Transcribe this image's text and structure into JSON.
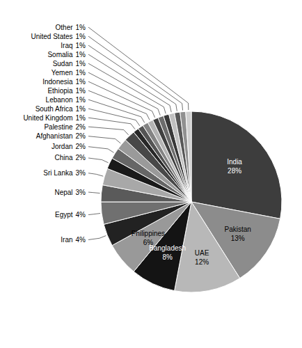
{
  "chart_data": {
    "type": "pie",
    "categories": [
      "India",
      "Pakistan",
      "UAE",
      "Bangladesh",
      "Philippines",
      "Iran",
      "Egypt",
      "Nepal",
      "Sri Lanka",
      "China",
      "Jordan",
      "Afghanistan",
      "Palestine",
      "United Kingdom",
      "South Africa",
      "Lebanon",
      "Ethiopia",
      "Indonesia",
      "Yemen",
      "Sudan",
      "Somalia",
      "Iraq",
      "United States",
      "Other"
    ],
    "values": [
      28,
      13,
      12,
      8,
      6,
      4,
      4,
      3,
      3,
      2,
      2,
      2,
      2,
      1,
      1,
      1,
      1,
      1,
      1,
      1,
      1,
      1,
      1,
      1
    ],
    "value_labels": [
      "28%",
      "13%",
      "12%",
      "8%",
      "6%",
      "4%",
      "4%",
      "3%",
      "3%",
      "2%",
      "2%",
      "2%",
      "2%",
      "1%",
      "1%",
      "1%",
      "1%",
      "1%",
      "1%",
      "1%",
      "1%",
      "1%",
      "1%",
      "1%"
    ],
    "colors": [
      "#3d3d3d",
      "#8c8c8c",
      "#b8b8b8",
      "#141414",
      "#999999",
      "#222222",
      "#707070",
      "#5a5a5a",
      "#a8a8a8",
      "#1a1a1a",
      "#666666",
      "#9a9a9a",
      "#484848",
      "#282828",
      "#545454",
      "#848484",
      "#b4b4b4",
      "#404040",
      "#6c6c6c",
      "#383838",
      "#c0c0c0",
      "#585858",
      "#909090",
      "#d0d0d0"
    ]
  }
}
